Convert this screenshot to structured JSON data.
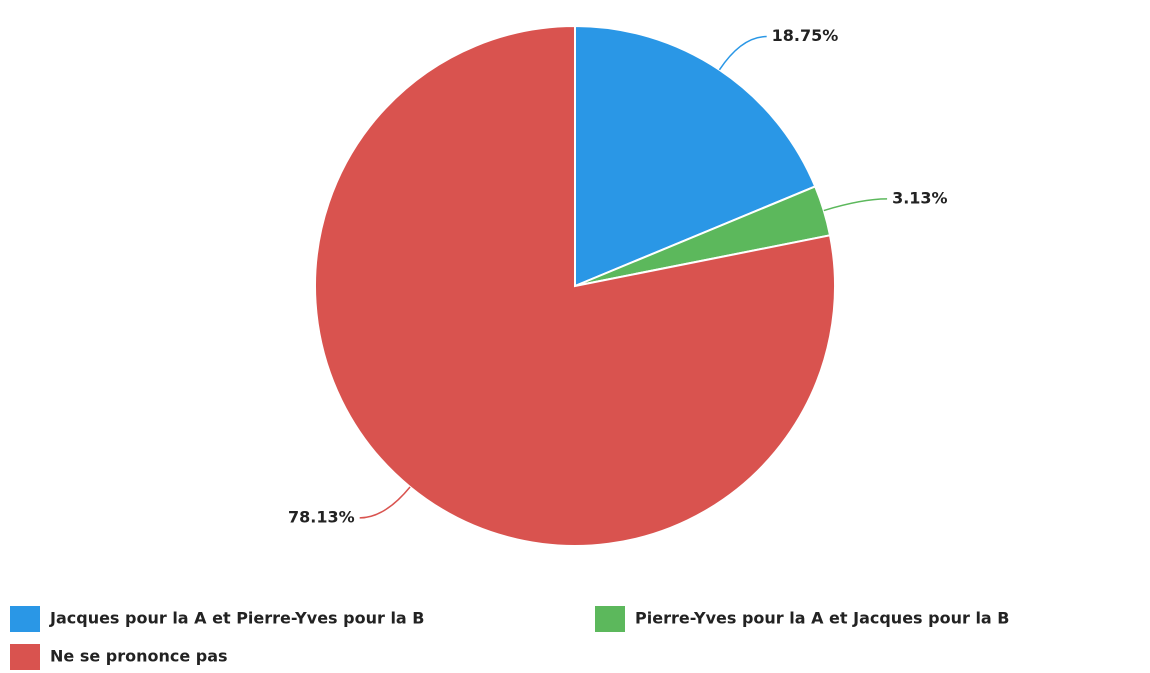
{
  "chart_data": {
    "type": "pie",
    "categories": [
      "Jacques pour la A et Pierre-Yves pour la B",
      "Pierre-Yves pour la A et Jacques pour la B",
      "Ne se prononce pas"
    ],
    "values": [
      18.75,
      3.13,
      78.13
    ],
    "value_labels": [
      "18.75%",
      "3.13%",
      "78.13%"
    ],
    "colors": [
      "#2a97e6",
      "#5cb85c",
      "#d9534f"
    ],
    "legend": "bottom"
  }
}
